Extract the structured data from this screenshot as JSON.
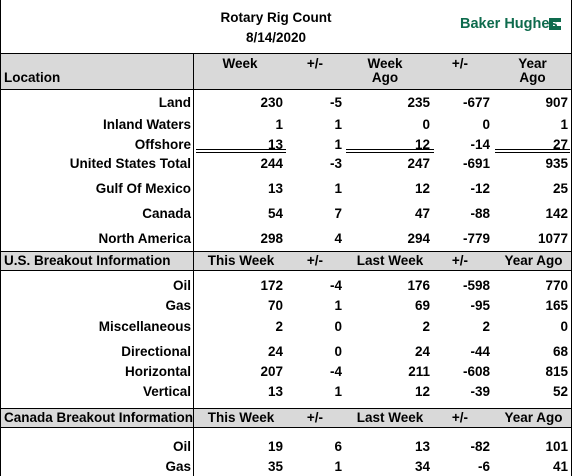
{
  "report": {
    "title": "Rotary Rig Count",
    "date": "8/14/2020",
    "brand": "Baker Hughes"
  },
  "colors": {
    "brand_green": "#0e6b4d",
    "header_band": "#d9d9d9"
  },
  "location_header": {
    "label": "Location",
    "col1": "Week",
    "col2": "+/-",
    "col3_line1": "Week",
    "col3_line2": "Ago",
    "col4": "+/-",
    "col5_line1": "Year",
    "col5_line2": "Ago"
  },
  "location_rows": [
    {
      "label": "Land",
      "week": "230",
      "chg": "-5",
      "week_ago": "235",
      "chg_year": "-677",
      "year_ago": "907"
    },
    {
      "label": "Inland Waters",
      "week": "1",
      "chg": "1",
      "week_ago": "0",
      "chg_year": "0",
      "year_ago": "1"
    },
    {
      "label": "Offshore",
      "week": "13",
      "chg": "1",
      "week_ago": "12",
      "chg_year": "-14",
      "year_ago": "27"
    },
    {
      "label": "United States Total",
      "week": "244",
      "chg": "-3",
      "week_ago": "247",
      "chg_year": "-691",
      "year_ago": "935"
    },
    {
      "label": "Gulf Of Mexico",
      "week": "13",
      "chg": "1",
      "week_ago": "12",
      "chg_year": "-12",
      "year_ago": "25"
    },
    {
      "label": "Canada",
      "week": "54",
      "chg": "7",
      "week_ago": "47",
      "chg_year": "-88",
      "year_ago": "142"
    },
    {
      "label": "North America",
      "week": "298",
      "chg": "4",
      "week_ago": "294",
      "chg_year": "-779",
      "year_ago": "1077"
    }
  ],
  "us_header": {
    "label": "U.S. Breakout Information",
    "col1": "This Week",
    "col2": "+/-",
    "col3": "Last Week",
    "col4": "+/-",
    "col5": "Year Ago"
  },
  "us_rows": [
    {
      "label": "Oil",
      "week": "172",
      "chg": "-4",
      "week_ago": "176",
      "chg_year": "-598",
      "year_ago": "770"
    },
    {
      "label": "Gas",
      "week": "70",
      "chg": "1",
      "week_ago": "69",
      "chg_year": "-95",
      "year_ago": "165"
    },
    {
      "label": "Miscellaneous",
      "week": "2",
      "chg": "0",
      "week_ago": "2",
      "chg_year": "2",
      "year_ago": "0"
    },
    {
      "label": "Directional",
      "week": "24",
      "chg": "0",
      "week_ago": "24",
      "chg_year": "-44",
      "year_ago": "68"
    },
    {
      "label": "Horizontal",
      "week": "207",
      "chg": "-4",
      "week_ago": "211",
      "chg_year": "-608",
      "year_ago": "815"
    },
    {
      "label": "Vertical",
      "week": "13",
      "chg": "1",
      "week_ago": "12",
      "chg_year": "-39",
      "year_ago": "52"
    }
  ],
  "canada_header": {
    "label": "Canada Breakout Information",
    "col1": "This Week",
    "col2": "+/-",
    "col3": "Last Week",
    "col4": "+/-",
    "col5": "Year Ago"
  },
  "canada_rows": [
    {
      "label": "Oil",
      "week": "19",
      "chg": "6",
      "week_ago": "13",
      "chg_year": "-82",
      "year_ago": "101"
    },
    {
      "label": "Gas",
      "week": "35",
      "chg": "1",
      "week_ago": "34",
      "chg_year": "-6",
      "year_ago": "41"
    }
  ]
}
